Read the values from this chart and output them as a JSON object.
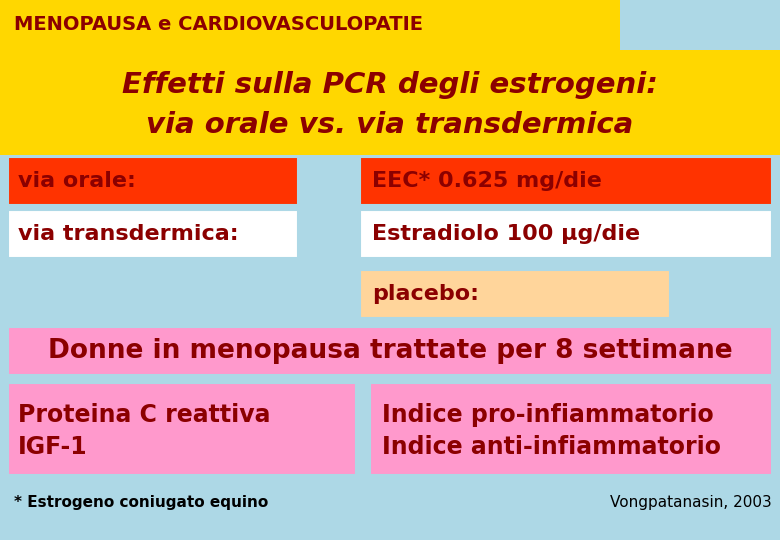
{
  "bg_color": "#add8e6",
  "title_bar_color": "#ffd700",
  "title_bar_text": "MENOPAUSA e CARDIOVASCULOPATIE",
  "title_bar_text_color": "#8b0000",
  "title_bar_width": 620,
  "header_bg": "#ffd700",
  "header_text_line1": "Effetti sulla PCR degli estrogeni:",
  "header_text_line2": "via orale vs. via transdermica",
  "header_text_color": "#8b0000",
  "row1_left_bg": "#ff3300",
  "row1_left_text": "via orale:",
  "row1_right_bg": "#ff3300",
  "row1_right_text": "EEC* 0.625 mg/die",
  "row2_left_bg": "#ffffff",
  "row2_left_text": "via transdermica:",
  "row2_right_bg": "#ffffff",
  "row2_right_text": "Estradiolo 100 μg/die",
  "row3_right_bg": "#ffd59b",
  "row3_right_text": "placebo:",
  "donne_bg": "#ff99cc",
  "donne_text": "Donne in menopausa trattate per 8 settimane",
  "bottom_left_bg": "#ff99cc",
  "bottom_left_text1": "Proteina C reattiva",
  "bottom_left_text2": "IGF-1",
  "bottom_right_bg": "#ff99cc",
  "bottom_right_text1": "Indice pro-infiammatorio",
  "bottom_right_text2": "Indice anti-infiammatorio",
  "text_dark": "#8b0000",
  "footnote_left": "* Estrogeno coniugato equino",
  "footnote_right": "Vongpatanasin, 2003"
}
